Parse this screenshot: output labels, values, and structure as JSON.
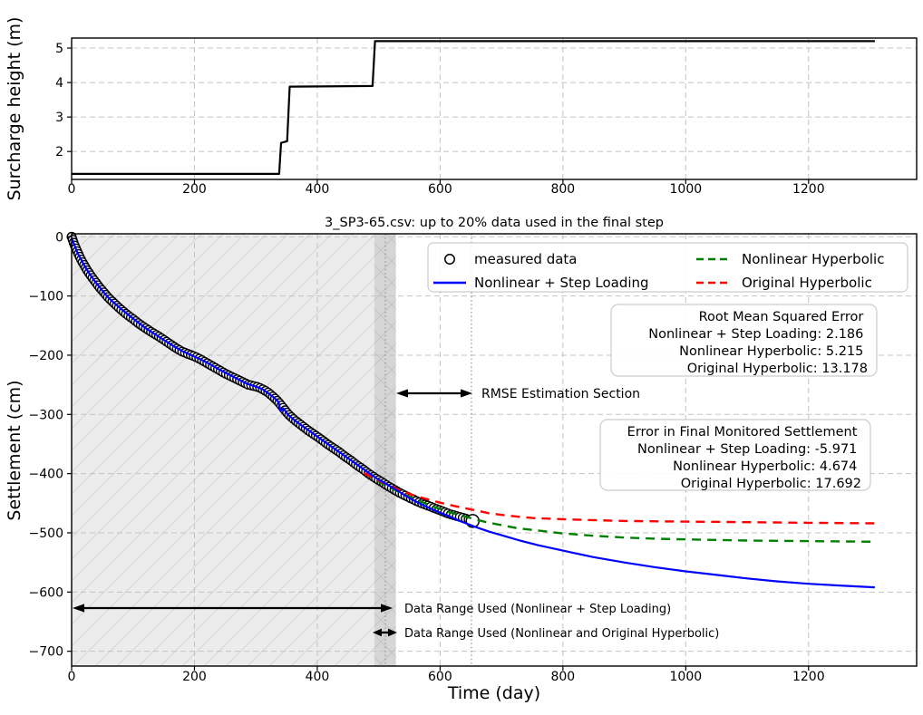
{
  "figure": {
    "background": "#ffffff",
    "grid_color": "#c3c3c3",
    "vline_color": "#999999"
  },
  "chart_data": [
    {
      "id": "surcharge",
      "type": "line",
      "title": "",
      "xlabel": "",
      "ylabel": "Surcharge height (m)",
      "xlim": [
        0,
        1376
      ],
      "ylim": [
        1.19,
        5.29
      ],
      "grid": true,
      "xtick_values": [
        0,
        200,
        400,
        600,
        800,
        1000,
        1200
      ],
      "xtick_labels": [
        "0",
        "200",
        "400",
        "600",
        "800",
        "1000",
        "1200"
      ],
      "ytick_values": [
        2,
        3,
        4,
        5
      ],
      "ytick_labels": [
        "2",
        "3",
        "4",
        "5"
      ],
      "series": [
        {
          "name": "surcharge height",
          "type": "line",
          "color": "#000000",
          "style": "solid",
          "width": 2.2,
          "points": [
            [
              0,
              1.35
            ],
            [
              338,
              1.35
            ],
            [
              341,
              2.25
            ],
            [
              351,
              2.3
            ],
            [
              355,
              3.88
            ],
            [
              490,
              3.9
            ],
            [
              494,
              5.2
            ],
            [
              1308,
              5.2
            ]
          ]
        }
      ]
    },
    {
      "id": "settlement",
      "type": "scatter+line",
      "title": "3_SP3-65.csv: up to 20% data used in the final step",
      "xlabel": "Time (day)",
      "ylabel": "Settlement (cm)",
      "xlim": [
        0,
        1376
      ],
      "ylim": [
        -725,
        5
      ],
      "grid": true,
      "xtick_values": [
        0,
        200,
        400,
        600,
        800,
        1000,
        1200
      ],
      "xtick_labels": [
        "0",
        "200",
        "400",
        "600",
        "800",
        "1000",
        "1200"
      ],
      "ytick_values": [
        0,
        -100,
        -200,
        -300,
        -400,
        -500,
        -600,
        -700
      ],
      "ytick_labels": [
        "0",
        "−100",
        "−200",
        "−300",
        "−400",
        "−500",
        "−600",
        "−700"
      ],
      "spans": [
        {
          "x0": 0,
          "x1": 528,
          "fill": "#ececec",
          "hatch": "fwd",
          "meaning": "data range used (Nonlinear + Step Loading)"
        },
        {
          "x0": 493,
          "x1": 528,
          "fill": "rgba(0,0,0,0.09)",
          "hatch": "back",
          "meaning": "data range used (Nonlinear and Original Hyperbolic)"
        }
      ],
      "vlines": [
        {
          "x": 511
        },
        {
          "x": 651
        }
      ],
      "series": [
        {
          "name": "measured data",
          "type": "scatter",
          "color": "#000000",
          "marker": "circle",
          "marker_radius": 4.7,
          "last_marker_radius": 7,
          "points": [
            [
              0,
              0
            ],
            [
              4,
              -12
            ],
            [
              8,
              -22
            ],
            [
              12,
              -31
            ],
            [
              16,
              -40
            ],
            [
              20,
              -47
            ],
            [
              25,
              -56
            ],
            [
              30,
              -64
            ],
            [
              35,
              -71
            ],
            [
              40,
              -78
            ],
            [
              45,
              -85
            ],
            [
              50,
              -91
            ],
            [
              55,
              -97
            ],
            [
              60,
              -103
            ],
            [
              68,
              -111
            ],
            [
              76,
              -119
            ],
            [
              84,
              -126
            ],
            [
              92,
              -133
            ],
            [
              100,
              -139
            ],
            [
              110,
              -147
            ],
            [
              120,
              -154
            ],
            [
              130,
              -161
            ],
            [
              140,
              -167
            ],
            [
              150,
              -174
            ],
            [
              160,
              -181
            ],
            [
              170,
              -188
            ],
            [
              180,
              -194
            ],
            [
              190,
              -198
            ],
            [
              200,
              -202
            ],
            [
              210,
              -207
            ],
            [
              220,
              -213
            ],
            [
              230,
              -219
            ],
            [
              240,
              -225
            ],
            [
              250,
              -231
            ],
            [
              260,
              -236
            ],
            [
              270,
              -241
            ],
            [
              280,
              -246
            ],
            [
              288,
              -250
            ],
            [
              296,
              -252
            ],
            [
              304,
              -254
            ],
            [
              312,
              -258
            ],
            [
              320,
              -263
            ],
            [
              328,
              -270
            ],
            [
              336,
              -278
            ],
            [
              343,
              -287
            ],
            [
              349,
              -295
            ],
            [
              355,
              -302
            ],
            [
              365,
              -311
            ],
            [
              375,
              -319
            ],
            [
              385,
              -327
            ],
            [
              395,
              -334
            ],
            [
              405,
              -341
            ],
            [
              415,
              -349
            ],
            [
              425,
              -356
            ],
            [
              435,
              -363
            ],
            [
              445,
              -371
            ],
            [
              455,
              -378
            ],
            [
              465,
              -386
            ],
            [
              475,
              -393
            ],
            [
              485,
              -401
            ],
            [
              495,
              -408
            ],
            [
              505,
              -414
            ],
            [
              515,
              -421
            ],
            [
              525,
              -427
            ],
            [
              535,
              -433
            ],
            [
              545,
              -438
            ],
            [
              555,
              -443
            ],
            [
              565,
              -448
            ],
            [
              575,
              -452
            ],
            [
              585,
              -456
            ],
            [
              595,
              -460
            ],
            [
              605,
              -464
            ],
            [
              615,
              -468
            ],
            [
              625,
              -471
            ],
            [
              635,
              -474
            ],
            [
              645,
              -477
            ],
            [
              653,
              -480
            ]
          ]
        },
        {
          "name": "Nonlinear + Step Loading",
          "type": "line",
          "color": "#0000ff",
          "style": "solid",
          "width": 2.2,
          "points": [
            [
              0,
              -2
            ],
            [
              10,
              -28
            ],
            [
              20,
              -47
            ],
            [
              30,
              -64
            ],
            [
              40,
              -78
            ],
            [
              50,
              -91
            ],
            [
              60,
              -103
            ],
            [
              75,
              -117
            ],
            [
              90,
              -130
            ],
            [
              105,
              -142
            ],
            [
              120,
              -154
            ],
            [
              135,
              -164
            ],
            [
              150,
              -174
            ],
            [
              165,
              -184
            ],
            [
              180,
              -193
            ],
            [
              195,
              -200
            ],
            [
              210,
              -207
            ],
            [
              225,
              -215
            ],
            [
              240,
              -224
            ],
            [
              255,
              -232
            ],
            [
              270,
              -240
            ],
            [
              285,
              -248
            ],
            [
              300,
              -253
            ],
            [
              310,
              -257
            ],
            [
              320,
              -264
            ],
            [
              330,
              -272
            ],
            [
              337,
              -279
            ],
            [
              340,
              -294
            ],
            [
              345,
              -290
            ],
            [
              352,
              -300
            ],
            [
              362,
              -309
            ],
            [
              375,
              -319
            ],
            [
              390,
              -330
            ],
            [
              405,
              -341
            ],
            [
              420,
              -352
            ],
            [
              435,
              -363
            ],
            [
              450,
              -374
            ],
            [
              465,
              -385
            ],
            [
              480,
              -396
            ],
            [
              495,
              -407
            ],
            [
              510,
              -416
            ],
            [
              525,
              -425
            ],
            [
              540,
              -435
            ],
            [
              555,
              -444
            ],
            [
              570,
              -452
            ],
            [
              585,
              -459
            ],
            [
              600,
              -466
            ],
            [
              615,
              -472
            ],
            [
              630,
              -479
            ],
            [
              645,
              -485
            ],
            [
              660,
              -491
            ],
            [
              680,
              -498
            ],
            [
              700,
              -504
            ],
            [
              730,
              -513
            ],
            [
              760,
              -521
            ],
            [
              800,
              -530
            ],
            [
              850,
              -541
            ],
            [
              900,
              -550
            ],
            [
              950,
              -558
            ],
            [
              1000,
              -565
            ],
            [
              1050,
              -571
            ],
            [
              1100,
              -577
            ],
            [
              1150,
              -582
            ],
            [
              1200,
              -586
            ],
            [
              1250,
              -589
            ],
            [
              1308,
              -592
            ]
          ]
        },
        {
          "name": "Nonlinear Hyperbolic",
          "type": "line",
          "color": "#008000",
          "style": "dashed",
          "width": 2.4,
          "points": [
            [
              476,
              -399
            ],
            [
              495,
              -411
            ],
            [
              515,
              -422
            ],
            [
              535,
              -432
            ],
            [
              555,
              -441
            ],
            [
              575,
              -450
            ],
            [
              595,
              -458
            ],
            [
              615,
              -465
            ],
            [
              635,
              -471
            ],
            [
              653,
              -476
            ],
            [
              675,
              -482
            ],
            [
              700,
              -487
            ],
            [
              725,
              -492
            ],
            [
              750,
              -495
            ],
            [
              800,
              -501
            ],
            [
              850,
              -505
            ],
            [
              900,
              -508
            ],
            [
              950,
              -510
            ],
            [
              1000,
              -511
            ],
            [
              1100,
              -513
            ],
            [
              1200,
              -514
            ],
            [
              1308,
              -515
            ]
          ]
        },
        {
          "name": "Original Hyperbolic",
          "type": "line",
          "color": "#ff0000",
          "style": "dashed",
          "width": 2.4,
          "points": [
            [
              476,
              -399
            ],
            [
              495,
              -409
            ],
            [
              515,
              -419
            ],
            [
              535,
              -428
            ],
            [
              555,
              -436
            ],
            [
              575,
              -442
            ],
            [
              600,
              -449
            ],
            [
              625,
              -455
            ],
            [
              653,
              -461
            ],
            [
              680,
              -467
            ],
            [
              710,
              -471
            ],
            [
              750,
              -475
            ],
            [
              800,
              -477
            ],
            [
              900,
              -480
            ],
            [
              1000,
              -481
            ],
            [
              1100,
              -482
            ],
            [
              1200,
              -483
            ],
            [
              1308,
              -484
            ]
          ]
        }
      ],
      "legend": {
        "entries": [
          {
            "label": "measured data",
            "marker": "circle",
            "color": "#000000"
          },
          {
            "label": "Nonlinear + Step Loading",
            "marker": "line",
            "color": "#0000ff"
          },
          {
            "label": "Nonlinear Hyperbolic",
            "marker": "dashed-line",
            "color": "#008000"
          },
          {
            "label": "Original Hyperbolic",
            "marker": "dashed-line",
            "color": "#ff0000"
          }
        ]
      },
      "annotations": {
        "text_color": "#ff0000",
        "rmse_box": {
          "lines": [
            "Root Mean Squared Error",
            "Nonlinear + Step Loading: 2.186",
            "Nonlinear Hyperbolic: 5.215",
            "Original Hyperbolic: 13.178"
          ]
        },
        "error_box": {
          "lines": [
            "Error in Final Monitored Settlement",
            "Nonlinear + Step Loading: -5.971",
            "Nonlinear Hyperbolic: 4.674",
            "Original Hyperbolic: 17.692"
          ]
        },
        "rmse_section": {
          "label": "RMSE Estimation Section"
        },
        "range_step": {
          "label": "Data Range Used (Nonlinear + Step Loading)"
        },
        "range_hyp": {
          "label": "Data Range Used (Nonlinear and Original Hyperbolic)"
        }
      }
    }
  ]
}
